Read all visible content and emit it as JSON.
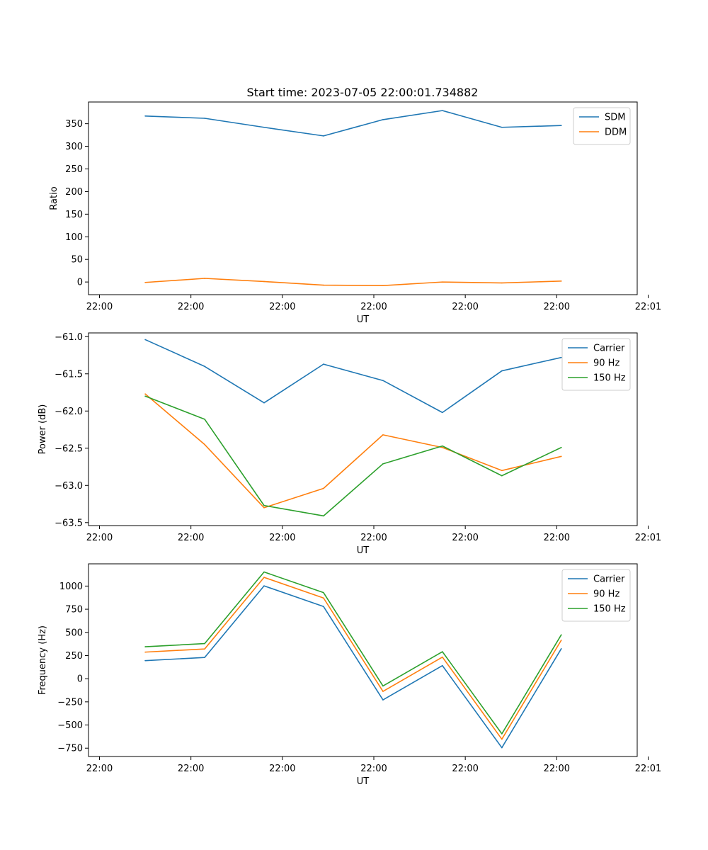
{
  "figure_title": "Start time: 2023-07-05 22:00:01.734882",
  "colors": {
    "blue": "#1f77b4",
    "orange": "#ff7f0e",
    "green": "#2ca02c",
    "axes": "#000000",
    "background": "#ffffff"
  },
  "chart_data": [
    {
      "type": "line",
      "xlabel": "UT",
      "ylabel": "Ratio",
      "legend_position": "top-right",
      "grid": false,
      "x_ticks": [
        0,
        1,
        2,
        3,
        4,
        5,
        6
      ],
      "x_tick_labels": [
        "22:00",
        "22:00",
        "22:00",
        "22:00",
        "22:00",
        "22:00",
        "22:01"
      ],
      "xlim": [
        -0.12,
        5.88
      ],
      "ylim": [
        -28,
        398
      ],
      "y_ticks": [
        0,
        50,
        100,
        150,
        200,
        250,
        300,
        350
      ],
      "y_tick_labels": [
        "0",
        "50",
        "100",
        "150",
        "200",
        "250",
        "300",
        "350"
      ],
      "x": [
        0.5,
        1.15,
        1.8,
        2.45,
        3.1,
        3.75,
        4.4,
        5.05
      ],
      "series": [
        {
          "name": "SDM",
          "color": "#1f77b4",
          "values": [
            367,
            362,
            342,
            323,
            359,
            379,
            342,
            346
          ]
        },
        {
          "name": "DDM",
          "color": "#ff7f0e",
          "values": [
            -1,
            8,
            1,
            -7,
            -8,
            0,
            -2,
            2
          ]
        }
      ]
    },
    {
      "type": "line",
      "xlabel": "UT",
      "ylabel": "Power (dB)",
      "legend_position": "top-right",
      "grid": false,
      "x_ticks": [
        0,
        1,
        2,
        3,
        4,
        5,
        6
      ],
      "x_tick_labels": [
        "22:00",
        "22:00",
        "22:00",
        "22:00",
        "22:00",
        "22:00",
        "22:01"
      ],
      "xlim": [
        -0.12,
        5.88
      ],
      "ylim": [
        -63.54,
        -60.95
      ],
      "y_ticks": [
        -63.5,
        -63.0,
        -62.5,
        -62.0,
        -61.5,
        -61.0
      ],
      "y_tick_labels": [
        "−63.5",
        "−63.0",
        "−62.5",
        "−62.0",
        "−61.5",
        "−61.0"
      ],
      "x": [
        0.5,
        1.15,
        1.8,
        2.45,
        3.1,
        3.75,
        4.4,
        5.05
      ],
      "series": [
        {
          "name": "Carrier",
          "color": "#1f77b4",
          "values": [
            -61.04,
            -61.4,
            -61.89,
            -61.37,
            -61.59,
            -62.02,
            -61.46,
            -61.28
          ]
        },
        {
          "name": "90 Hz",
          "color": "#ff7f0e",
          "values": [
            -61.77,
            -62.45,
            -63.3,
            -63.04,
            -62.32,
            -62.49,
            -62.8,
            -62.61
          ]
        },
        {
          "name": "150 Hz",
          "color": "#2ca02c",
          "values": [
            -61.8,
            -62.11,
            -63.27,
            -63.41,
            -62.71,
            -62.47,
            -62.87,
            -62.49
          ]
        }
      ]
    },
    {
      "type": "line",
      "xlabel": "UT",
      "ylabel": "Frequency (Hz)",
      "legend_position": "top-right",
      "grid": false,
      "x_ticks": [
        0,
        1,
        2,
        3,
        4,
        5,
        6
      ],
      "x_tick_labels": [
        "22:00",
        "22:00",
        "22:00",
        "22:00",
        "22:00",
        "22:00",
        "22:01"
      ],
      "xlim": [
        -0.12,
        5.88
      ],
      "ylim": [
        -840,
        1240
      ],
      "y_ticks": [
        -750,
        -500,
        -250,
        0,
        250,
        500,
        750,
        1000
      ],
      "y_tick_labels": [
        "−750",
        "−500",
        "−250",
        "0",
        "250",
        "500",
        "750",
        "1000"
      ],
      "x": [
        0.5,
        1.15,
        1.8,
        2.45,
        3.1,
        3.75,
        4.4,
        5.05
      ],
      "series": [
        {
          "name": "Carrier",
          "color": "#1f77b4",
          "values": [
            195,
            229,
            1002,
            779,
            -229,
            141,
            -745,
            324
          ]
        },
        {
          "name": "90 Hz",
          "color": "#ff7f0e",
          "values": [
            287,
            321,
            1094,
            871,
            -137,
            233,
            -653,
            416
          ]
        },
        {
          "name": "150 Hz",
          "color": "#2ca02c",
          "values": [
            345,
            379,
            1152,
            929,
            -79,
            291,
            -595,
            474
          ]
        }
      ]
    }
  ]
}
